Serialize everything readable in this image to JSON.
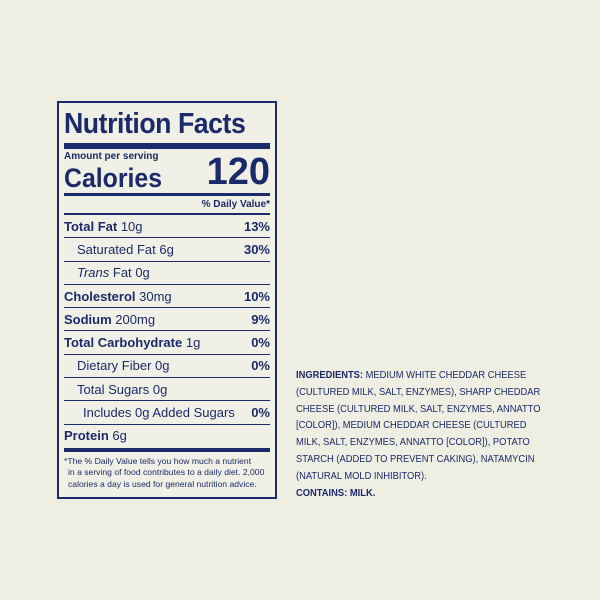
{
  "label": {
    "title": "Nutrition Facts",
    "amount_per_serving": "Amount per serving",
    "calories_label": "Calories",
    "calories_value": "120",
    "daily_value_header": "% Daily Value*",
    "rows": [
      {
        "name": "Total Fat",
        "amount": "10g",
        "dv": "13%"
      },
      {
        "name": "Saturated Fat",
        "amount": "6g",
        "dv": "30%"
      },
      {
        "name": "Trans",
        "name_suffix": "Fat",
        "amount": "0g",
        "dv": ""
      },
      {
        "name": "Cholesterol",
        "amount": "30mg",
        "dv": "10%"
      },
      {
        "name": "Sodium",
        "amount": "200mg",
        "dv": "9%"
      },
      {
        "name": "Total Carbohydrate",
        "amount": "1g",
        "dv": "0%"
      },
      {
        "name": "Dietary Fiber",
        "amount": "0g",
        "dv": "0%"
      },
      {
        "name": "Total Sugars",
        "amount": "0g",
        "dv": ""
      },
      {
        "name": "Includes 0g Added Sugars",
        "amount": "",
        "dv": "0%"
      },
      {
        "name": "Protein",
        "amount": "6g",
        "dv": ""
      }
    ],
    "footnote": [
      "*The % Daily Value tells you how much a nutrient",
      "in a serving of food contributes to a daily diet. 2,000",
      "calories a day is used for general nutrition advice."
    ]
  },
  "ingredients": {
    "heading": "INGREDIENTS:",
    "lines": [
      " MEDIUM WHITE CHEDDAR CHEESE",
      "(CULTURED MILK, SALT, ENZYMES), SHARP CHEDDAR",
      "CHEESE (CULTURED MILK, SALT, ENZYMES, ANNATTO",
      "[COLOR]), MEDIUM CHEDDAR CHEESE (CULTURED",
      "MILK, SALT, ENZYMES, ANNATTO [COLOR]), POTATO",
      "STARCH (ADDED TO PREVENT CAKING), NATAMYCIN",
      "(NATURAL MOLD INHIBITOR)."
    ],
    "contains": "CONTAINS: MILK."
  },
  "colors": {
    "ink": "#1b2a6b",
    "background": "#efeee3"
  }
}
